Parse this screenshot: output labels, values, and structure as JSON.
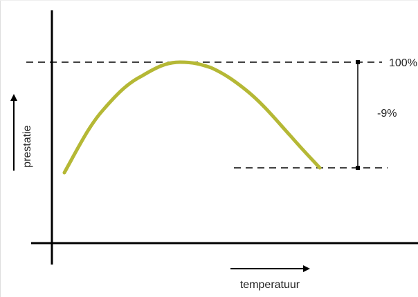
{
  "labels": {
    "top": "100%",
    "difference": "-9%",
    "y_axis": "prestatie",
    "x_axis": "temperatuur"
  }
}
